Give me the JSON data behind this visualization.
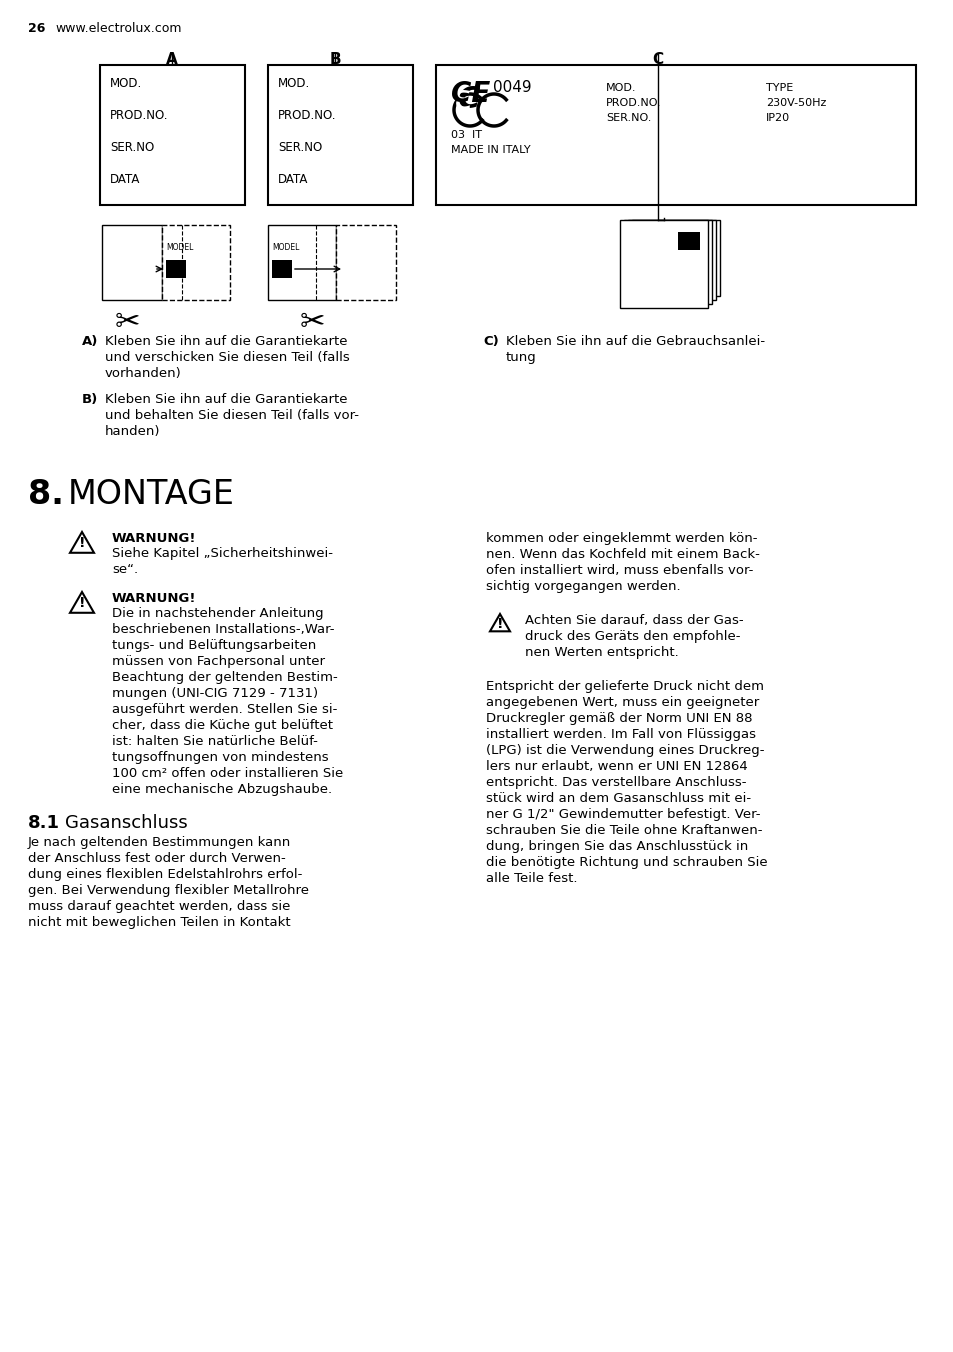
{
  "page_number": "26",
  "website": "www.electrolux.com",
  "background_color": "#ffffff",
  "text_color": "#000000",
  "label_A": "A",
  "label_B": "B",
  "label_C": "C",
  "box_A_lines": [
    "MOD.",
    "PROD.NO.",
    "SER.NO",
    "DATA"
  ],
  "box_B_lines": [
    "MOD.",
    "PROD.NO.",
    "SER.NO",
    "DATA"
  ],
  "box_C_line1": "MOD.",
  "box_C_line2": "PROD.NO.",
  "box_C_line3": "SER.NO.",
  "box_C_type": "TYPE",
  "box_C_voltage": "230V-50Hz",
  "box_C_ip": "IP20",
  "ce_subtext": "03  IT",
  "made_in": "MADE IN ITALY",
  "section_A_label": "A)",
  "section_A_lines": [
    "Kleben Sie ihn auf die Garantiekarte",
    "und verschicken Sie diesen Teil (falls",
    "vorhanden)"
  ],
  "section_B_label": "B)",
  "section_B_lines": [
    "Kleben Sie ihn auf die Garantiekarte",
    "und behalten Sie diesen Teil (falls vor-",
    "handen)"
  ],
  "section_C_label": "C)",
  "section_C_lines": [
    "Kleben Sie ihn auf die Gebrauchsanlei-",
    "tung"
  ],
  "chapter_num": "8.",
  "chapter_title": "MONTAGE",
  "warning1_title": "WARNUNG!",
  "warning1_lines": [
    "Siehe Kapitel „Sicherheitshinwei-",
    "se“."
  ],
  "warning2_title": "WARNUNG!",
  "warning2_lines": [
    "Die in nachstehender Anleitung",
    "beschriebenen Installations-,War-",
    "tungs- und Belüftungsarbeiten",
    "müssen von Fachpersonal unter",
    "Beachtung der geltenden Bestim-",
    "mungen (UNI-CIG 7129 - 7131)",
    "ausgeführt werden. Stellen Sie si-",
    "cher, dass die Küche gut belüftet",
    "ist: halten Sie natürliche Belüf-",
    "tungsoffnungen von mindestens",
    "100 cm² offen oder installieren Sie",
    "eine mechanische Abzugshaube."
  ],
  "right_col_lines1": [
    "kommen oder eingeklemmt werden kön-",
    "nen. Wenn das Kochfeld mit einem Back-",
    "ofen installiert wird, muss ebenfalls vor-",
    "sichtig vorgegangen werden."
  ],
  "warning3_lines": [
    "Achten Sie darauf, dass der Gas-",
    "druck des Geräts den empfohle-",
    "nen Werten entspricht."
  ],
  "right_col_lines2": [
    "Entspricht der gelieferte Druck nicht dem",
    "angegebenen Wert, muss ein geeigneter",
    "Druckregler gemäß der Norm UNI EN 88",
    "installiert werden. Im Fall von Flüssiggas",
    "(LPG) ist die Verwendung eines Druckreg-",
    "lers nur erlaubt, wenn er UNI EN 12864",
    "entspricht. Das verstellbare Anschluss-",
    "stück wird an dem Gasanschluss mit ei-",
    "ner G 1/2\" Gewindemutter befestigt. Ver-",
    "schrauben Sie die Teile ohne Kraftanwen-",
    "dung, bringen Sie das Anschlusstück in",
    "die benötigte Richtung und schrauben Sie",
    "alle Teile fest."
  ],
  "subsection_num": "8.1",
  "subsection_title": "Gasanschluss",
  "left_col_lines2": [
    "Je nach geltenden Bestimmungen kann",
    "der Anschluss fest oder durch Verwen-",
    "dung eines flexiblen Edelstahlrohrs erfol-",
    "gen. Bei Verwendung flexibler Metallrohre",
    "muss darauf geachtet werden, dass sie",
    "nicht mit beweglichen Teilen in Kontakt"
  ]
}
